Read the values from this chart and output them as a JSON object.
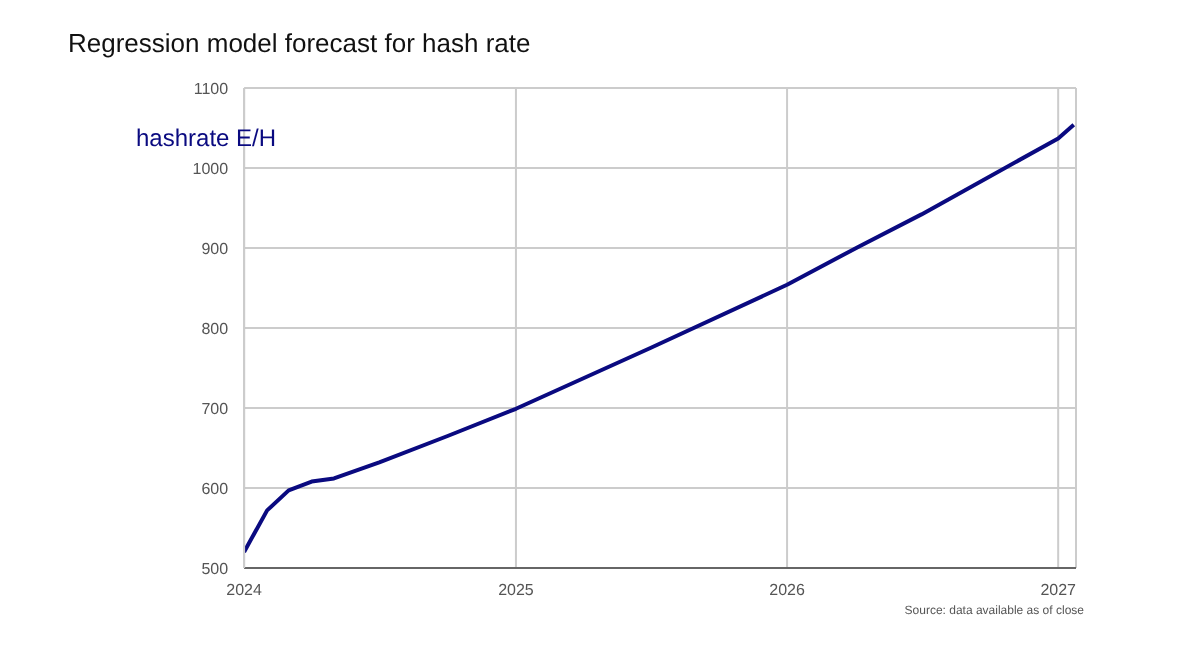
{
  "chart_data": {
    "type": "line",
    "title": "Regression model forecast for hash rate",
    "x": [
      "2024-01-01",
      "2024-02-01",
      "2024-03-01",
      "2024-04-01",
      "2024-05-01",
      "2024-07-01",
      "2024-10-01",
      "2025-01-01",
      "2025-07-01",
      "2026-01-01",
      "2026-04-08",
      "2026-07-01",
      "2027-01-01",
      "2027-01-22"
    ],
    "series": [
      {
        "name": "hashrate E/H",
        "color": "#0a0a80",
        "values": [
          520,
          572,
          597,
          608,
          612,
          632,
          665,
          699,
          775,
          854,
          902,
          942,
          1037,
          1054
        ]
      }
    ],
    "xlim": [
      "2024-01-01",
      "2027-01-25"
    ],
    "xticks": [
      "2024",
      "2025",
      "2026",
      "2027"
    ],
    "ylim": [
      500,
      1100
    ],
    "yticks": [
      500,
      600,
      700,
      800,
      900,
      1000,
      1100
    ],
    "grid": true,
    "legend": "top left",
    "marker": "none",
    "line_style": "solid",
    "annotations": [
      "Source: data available as of close"
    ]
  }
}
